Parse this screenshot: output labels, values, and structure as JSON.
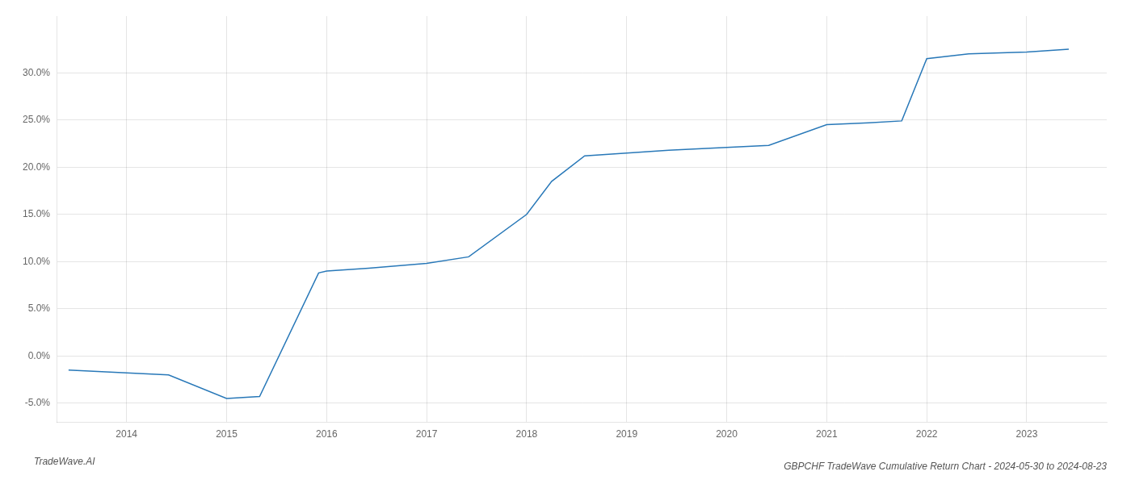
{
  "chart_data": {
    "type": "line",
    "title": "GBPCHF TradeWave Cumulative Return Chart - 2024-05-30 to 2024-08-23",
    "annotations": [
      "TradeWave.AI"
    ],
    "x": [
      2013.42,
      2014.0,
      2014.42,
      2015.0,
      2015.33,
      2015.92,
      2016.0,
      2016.42,
      2017.0,
      2017.42,
      2018.0,
      2018.25,
      2018.58,
      2019.0,
      2019.42,
      2020.0,
      2020.42,
      2021.0,
      2021.42,
      2021.75,
      2022.0,
      2022.42,
      2023.0,
      2023.42
    ],
    "values": [
      -1.5,
      -1.8,
      -2.0,
      -4.5,
      -4.3,
      8.8,
      9.0,
      9.3,
      9.8,
      10.5,
      15.0,
      18.5,
      21.2,
      21.5,
      21.8,
      22.1,
      22.3,
      24.5,
      24.7,
      24.9,
      31.5,
      32.0,
      32.2,
      32.5
    ],
    "color": "#2878b8",
    "xlim": [
      2013.3,
      2023.8
    ],
    "xticks": [
      2014,
      2015,
      2016,
      2017,
      2018,
      2019,
      2020,
      2021,
      2022,
      2023
    ],
    "ylim": [
      -7.0,
      36.0
    ],
    "yticks": [
      {
        "value": -5.0,
        "label": "-5.0%"
      },
      {
        "value": 0.0,
        "label": "0.0%"
      },
      {
        "value": 5.0,
        "label": "5.0%"
      },
      {
        "value": 10.0,
        "label": "10.0%"
      },
      {
        "value": 15.0,
        "label": "15.0%"
      },
      {
        "value": 20.0,
        "label": "20.0%"
      },
      {
        "value": 25.0,
        "label": "25.0%"
      },
      {
        "value": 30.0,
        "label": "30.0%"
      }
    ],
    "grid": true
  }
}
